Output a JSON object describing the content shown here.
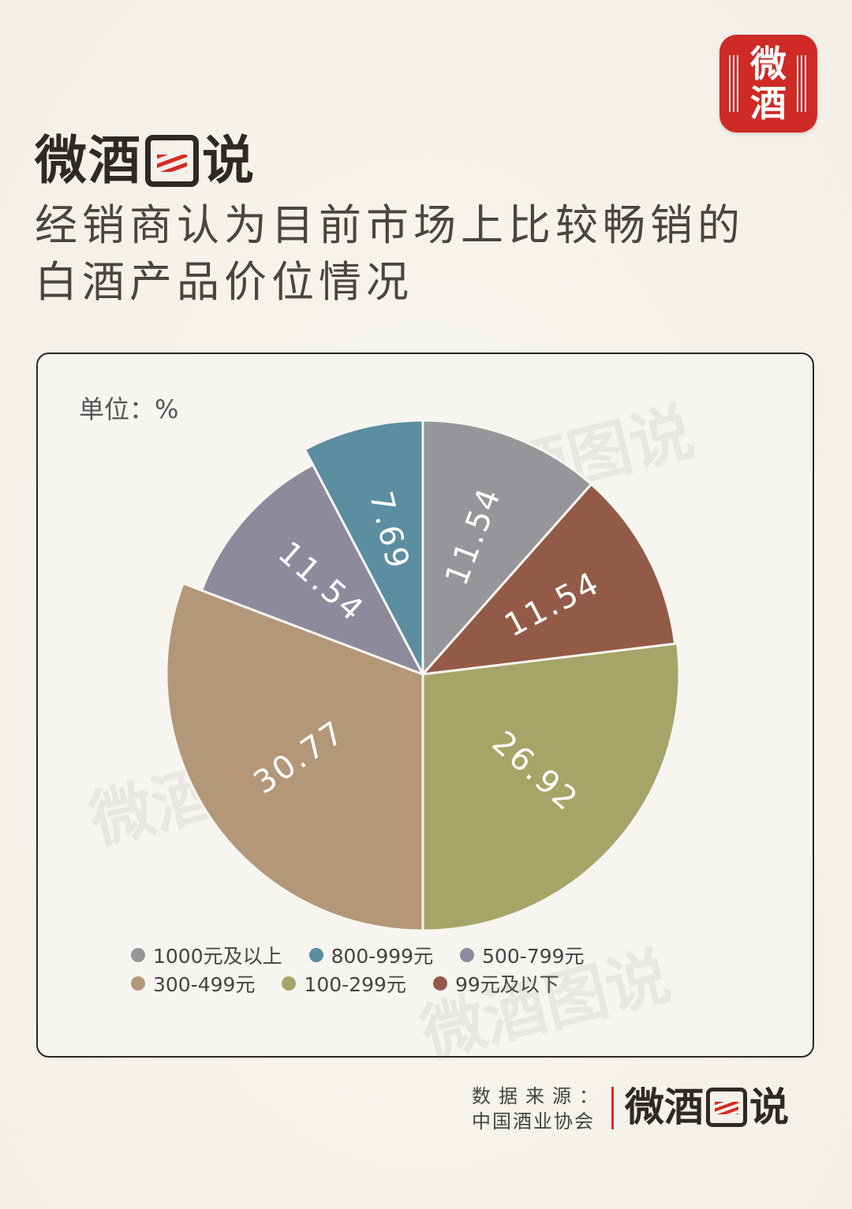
{
  "header": {
    "badge_text": "微酒",
    "brand_a": "微",
    "brand_b": "酒",
    "brand_c": "说",
    "title_line1": "经销商认为目前市场上比较畅销的",
    "title_line2": "白酒产品价位情况"
  },
  "unit_label": "单位：%",
  "chart_data": {
    "type": "pie",
    "title": "经销商认为目前市场上比较畅销的白酒产品价位情况",
    "unit": "单位：%",
    "slices": [
      {
        "label": "1000元及以上",
        "value": 11.54,
        "value_text": "11.54",
        "color": "#96969a"
      },
      {
        "label": "99元及以下",
        "value": 11.54,
        "value_text": "11.54",
        "color": "#945a48"
      },
      {
        "label": "100-299元",
        "value": 26.92,
        "value_text": "26.92",
        "color": "#a6a567"
      },
      {
        "label": "300-499元",
        "value": 30.77,
        "value_text": "30.77",
        "color": "#b49779"
      },
      {
        "label": "500-799元",
        "value": 11.54,
        "value_text": "11.54",
        "color": "#8d8a9c"
      },
      {
        "label": "800-999元",
        "value": 7.69,
        "value_text": "7.69",
        "color": "#5a8ea0"
      }
    ],
    "legend": [
      {
        "label": "1000元及以上",
        "color": "#96969a"
      },
      {
        "label": "800-999元",
        "color": "#5a8ea0"
      },
      {
        "label": "500-799元",
        "color": "#8d8a9c"
      },
      {
        "label": "300-499元",
        "color": "#b49779"
      },
      {
        "label": "100-299元",
        "color": "#a6a567"
      },
      {
        "label": "99元及以下",
        "color": "#945a48"
      }
    ],
    "legend_position": "bottom"
  },
  "source": {
    "label": "数据来源：",
    "org": "中国酒业协会"
  },
  "watermark_text": "微酒图说"
}
